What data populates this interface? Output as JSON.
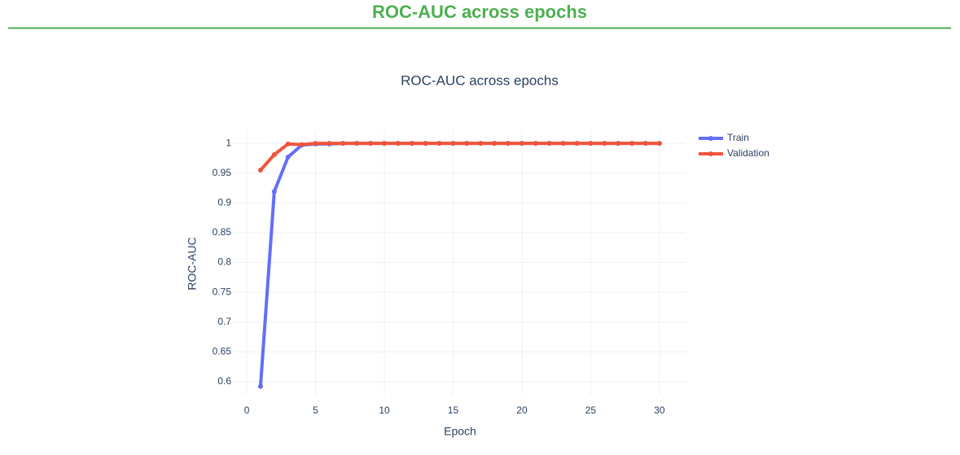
{
  "header": {
    "title": "ROC-AUC across epochs"
  },
  "chart_data": {
    "type": "line",
    "title": "ROC-AUC across epochs",
    "x_label": "Epoch",
    "y_label": "ROC-AUC",
    "x": [
      1,
      2,
      3,
      4,
      5,
      6,
      7,
      8,
      9,
      10,
      11,
      12,
      13,
      14,
      15,
      16,
      17,
      18,
      19,
      20,
      21,
      22,
      23,
      24,
      25,
      26,
      27,
      28,
      29,
      30
    ],
    "series": [
      {
        "name": "Train",
        "color": "#636efa",
        "values": [
          0.592,
          0.919,
          0.977,
          0.997,
          0.999,
          0.999,
          1,
          1,
          1,
          1,
          1,
          1,
          1,
          1,
          1,
          1,
          1,
          1,
          1,
          1,
          1,
          1,
          1,
          1,
          1,
          1,
          1,
          1,
          1,
          1
        ]
      },
      {
        "name": "Validation",
        "color": "#ef553b",
        "values": [
          0.955,
          0.981,
          0.999,
          0.998,
          1,
          1,
          1,
          1,
          1,
          1,
          1,
          1,
          1,
          1,
          1,
          1,
          1,
          1,
          1,
          1,
          1,
          1,
          1,
          1,
          1,
          1,
          1,
          1,
          1,
          1
        ]
      }
    ],
    "xlim": [
      -0.95,
      31.9
    ],
    "ylim": [
      0.578,
      1.022
    ],
    "xticks": [
      0,
      5,
      10,
      15,
      20,
      25,
      30
    ],
    "yticks": [
      0.6,
      0.65,
      0.7,
      0.75,
      0.8,
      0.85,
      0.9,
      0.95,
      1
    ],
    "grid": true,
    "legend": "top-right"
  }
}
